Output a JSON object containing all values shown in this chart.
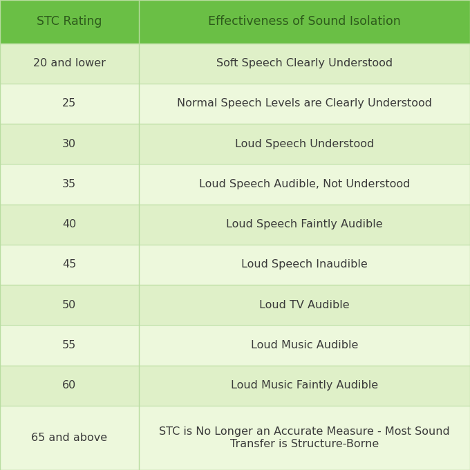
{
  "header_bg": "#6abf45",
  "row_bg_even": "#dff0c8",
  "row_bg_odd": "#edf8dc",
  "header_text_color": "#2d5a1b",
  "row_text_color": "#3a3a3a",
  "divider_color": "#b8dca0",
  "header": [
    "STC Rating",
    "Effectiveness of Sound Isolation"
  ],
  "rows": [
    [
      "20 and lower",
      "Soft Speech Clearly Understood"
    ],
    [
      "25",
      "Normal Speech Levels are Clearly Understood"
    ],
    [
      "30",
      "Loud Speech Understood"
    ],
    [
      "35",
      "Loud Speech Audible, Not Understood"
    ],
    [
      "40",
      "Loud Speech Faintly Audible"
    ],
    [
      "45",
      "Loud Speech Inaudible"
    ],
    [
      "50",
      "Loud TV Audible"
    ],
    [
      "55",
      "Loud Music Audible"
    ],
    [
      "60",
      "Loud Music Faintly Audible"
    ],
    [
      "65 and above",
      "STC is No Longer an Accurate Measure - Most Sound\nTransfer is Structure-Borne"
    ]
  ],
  "col_split": 0.295,
  "header_fontsize": 12.5,
  "row_fontsize": 11.5,
  "fig_width": 6.8,
  "fig_height": 6.8,
  "dpi": 100
}
